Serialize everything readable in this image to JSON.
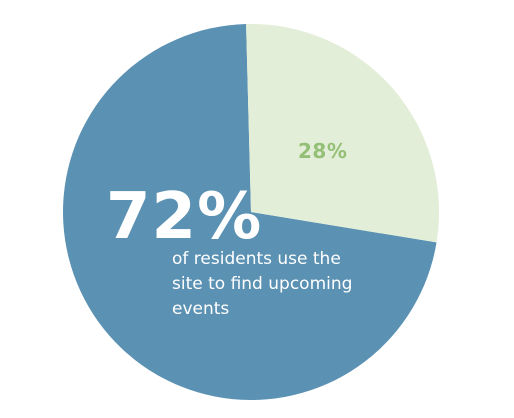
{
  "chart_data": {
    "type": "pie",
    "slices": [
      {
        "label": "72%",
        "value": 72,
        "color": "#5b91b3",
        "caption": [
          "of residents use the",
          "site to find upcoming",
          "events"
        ]
      },
      {
        "label": "28%",
        "value": 28,
        "color": "#e2eed7",
        "label_color": "#94bf76"
      }
    ]
  }
}
